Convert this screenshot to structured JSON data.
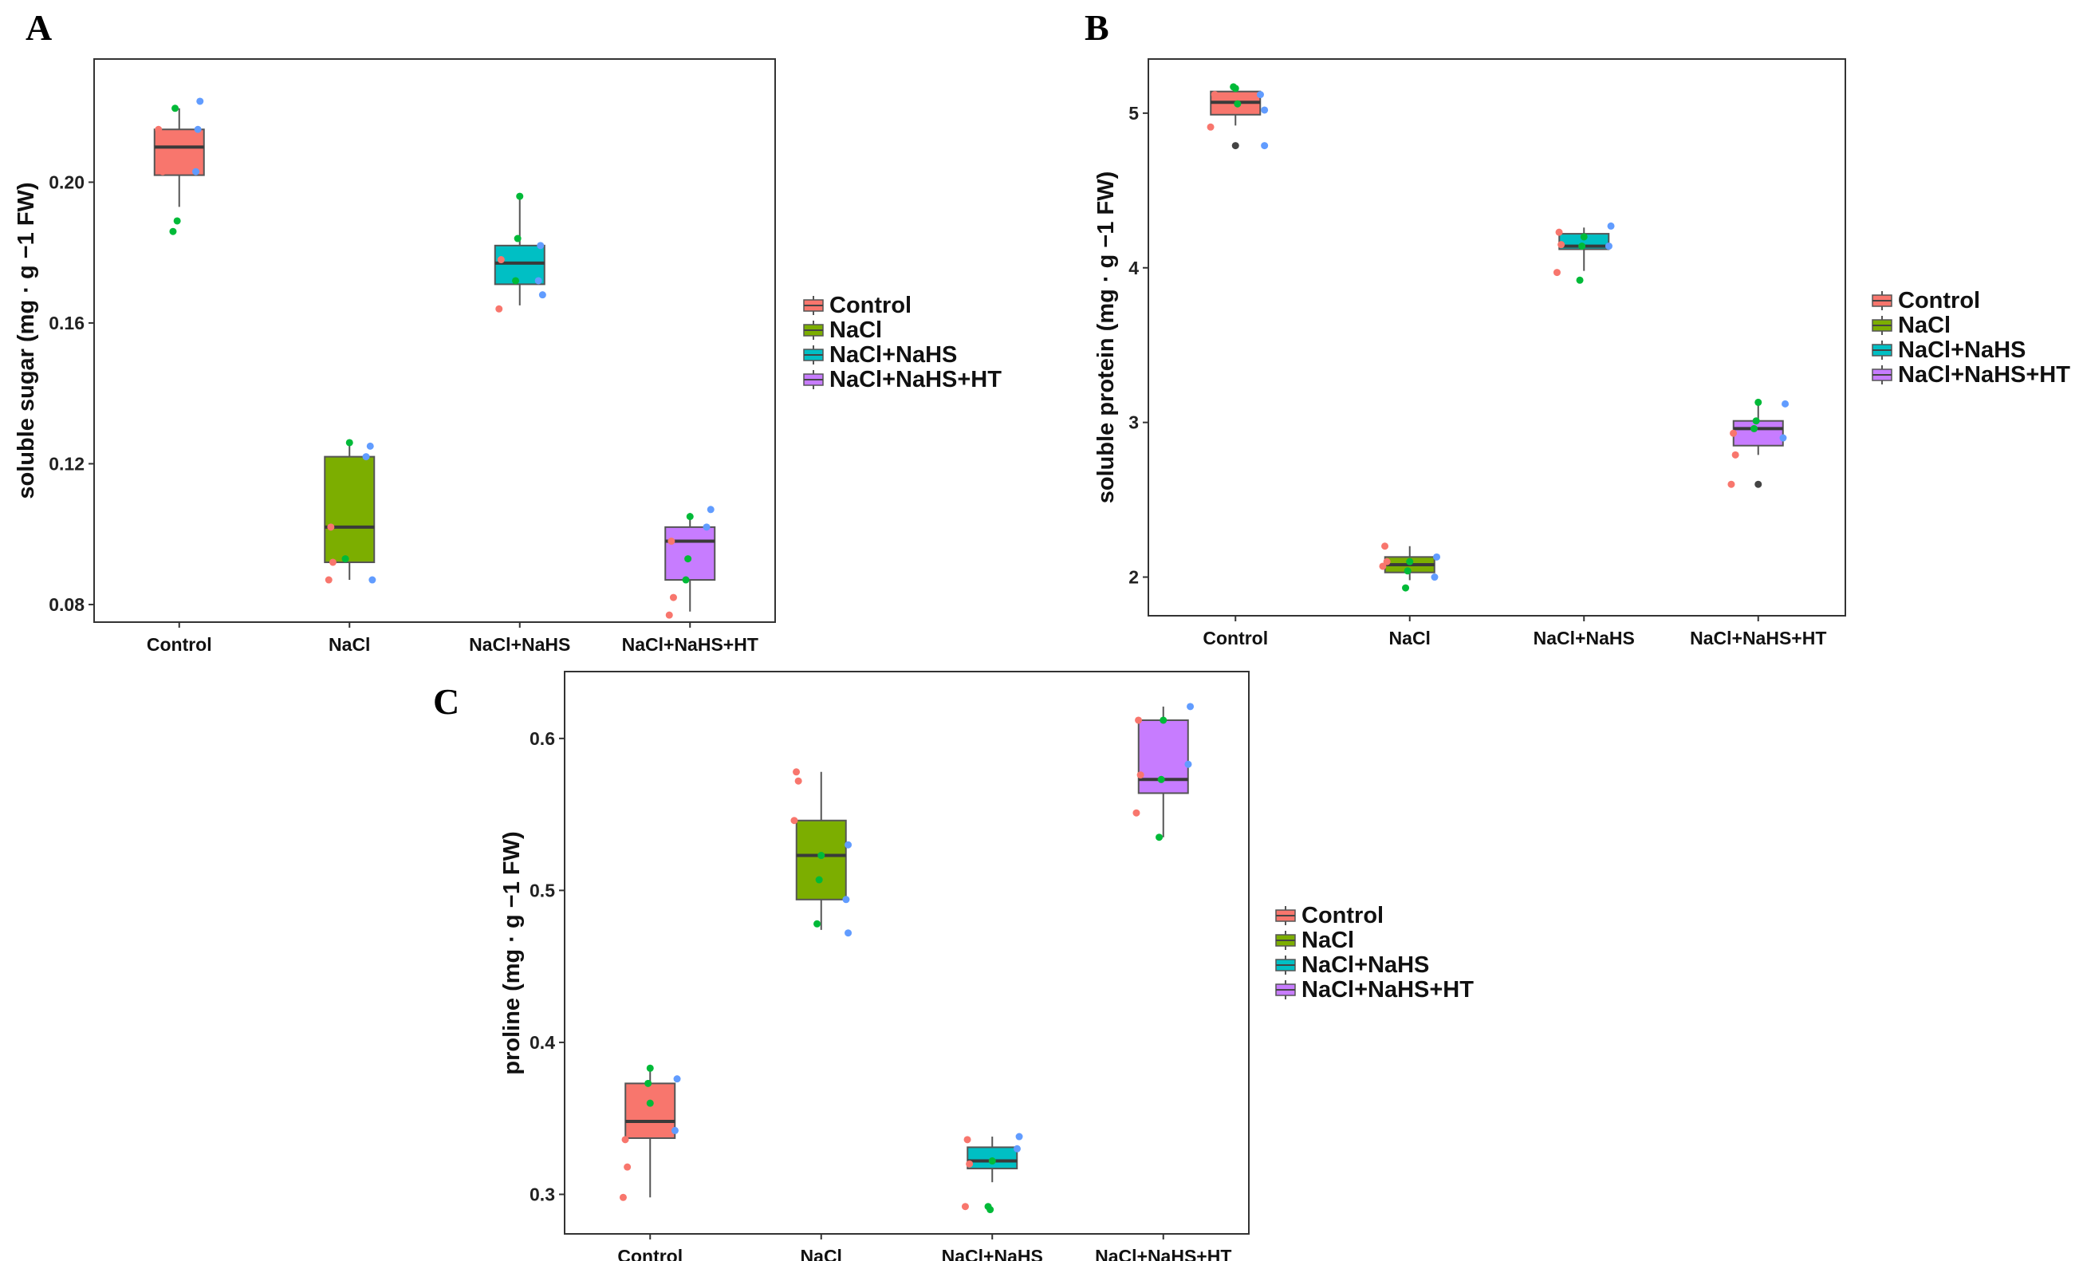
{
  "legend_items": [
    {
      "label": "Control",
      "color": "#f8766d"
    },
    {
      "label": "NaCl",
      "color": "#7cae00"
    },
    {
      "label": "NaCl+NaHS",
      "color": "#00bfc4"
    },
    {
      "label": "NaCl+NaHS+HT",
      "color": "#c77cff"
    }
  ],
  "point_colors": {
    "rep1": "#f8766d",
    "rep2": "#00ba38",
    "rep3": "#619cff",
    "outlier": "#444444"
  },
  "chart_data": [
    {
      "panel": "A",
      "type": "box",
      "ylabel": "soluble sugar (mg · g −1 FW)",
      "categories": [
        "Control",
        "NaCl",
        "NaCl+NaHS",
        "NaCl+NaHS+HT"
      ],
      "ylim": [
        0.075,
        0.235
      ],
      "yticks": [
        0.08,
        0.12,
        0.16,
        0.2
      ],
      "ytick_labels": [
        "0.08",
        "0.12",
        "0.16",
        "0.20"
      ],
      "boxes": [
        {
          "min": 0.193,
          "q1": 0.202,
          "median": 0.21,
          "q3": 0.215,
          "max": 0.221
        },
        {
          "min": 0.087,
          "q1": 0.092,
          "median": 0.102,
          "q3": 0.122,
          "max": 0.126
        },
        {
          "min": 0.165,
          "q1": 0.171,
          "median": 0.177,
          "q3": 0.182,
          "max": 0.196
        },
        {
          "min": 0.078,
          "q1": 0.087,
          "median": 0.098,
          "q3": 0.102,
          "max": 0.106
        }
      ],
      "points": [
        [
          {
            "v": 0.215,
            "g": "rep1",
            "dx": -10
          },
          {
            "v": 0.203,
            "g": "rep1",
            "dx": -8
          },
          {
            "v": 0.221,
            "g": "rep2",
            "dx": -2
          },
          {
            "v": 0.189,
            "g": "rep2",
            "dx": -1
          },
          {
            "v": 0.186,
            "g": "rep2",
            "dx": -3
          },
          {
            "v": 0.223,
            "g": "rep3",
            "dx": 10
          },
          {
            "v": 0.215,
            "g": "rep3",
            "dx": 9
          },
          {
            "v": 0.203,
            "g": "rep3",
            "dx": 8
          }
        ],
        [
          {
            "v": 0.102,
            "g": "rep1",
            "dx": -9
          },
          {
            "v": 0.092,
            "g": "rep1",
            "dx": -8
          },
          {
            "v": 0.087,
            "g": "rep1",
            "dx": -10
          },
          {
            "v": 0.126,
            "g": "rep2",
            "dx": 0
          },
          {
            "v": 0.093,
            "g": "rep2",
            "dx": -2
          },
          {
            "v": 0.125,
            "g": "rep3",
            "dx": 10
          },
          {
            "v": 0.122,
            "g": "rep3",
            "dx": 8
          },
          {
            "v": 0.087,
            "g": "rep3",
            "dx": 11
          }
        ],
        [
          {
            "v": 0.178,
            "g": "rep1",
            "dx": -9
          },
          {
            "v": 0.164,
            "g": "rep1",
            "dx": -10
          },
          {
            "v": 0.196,
            "g": "rep2",
            "dx": 0
          },
          {
            "v": 0.184,
            "g": "rep2",
            "dx": -1
          },
          {
            "v": 0.172,
            "g": "rep2",
            "dx": -2
          },
          {
            "v": 0.182,
            "g": "rep3",
            "dx": 10
          },
          {
            "v": 0.172,
            "g": "rep3",
            "dx": 9
          },
          {
            "v": 0.168,
            "g": "rep3",
            "dx": 11
          }
        ],
        [
          {
            "v": 0.098,
            "g": "rep1",
            "dx": -9
          },
          {
            "v": 0.082,
            "g": "rep1",
            "dx": -8
          },
          {
            "v": 0.077,
            "g": "rep1",
            "dx": -10
          },
          {
            "v": 0.105,
            "g": "rep2",
            "dx": 0
          },
          {
            "v": 0.093,
            "g": "rep2",
            "dx": -1
          },
          {
            "v": 0.087,
            "g": "rep2",
            "dx": -2
          },
          {
            "v": 0.107,
            "g": "rep3",
            "dx": 10
          },
          {
            "v": 0.102,
            "g": "rep3",
            "dx": 8
          }
        ]
      ]
    },
    {
      "panel": "B",
      "type": "box",
      "ylabel": "soluble protein (mg · g −1 FW)",
      "categories": [
        "Control",
        "NaCl",
        "NaCl+NaHS",
        "NaCl+NaHS+HT"
      ],
      "ylim": [
        1.75,
        5.35
      ],
      "yticks": [
        2,
        3,
        4,
        5
      ],
      "ytick_labels": [
        "2",
        "3",
        "4",
        "5"
      ],
      "boxes": [
        {
          "min": 4.92,
          "q1": 4.99,
          "median": 5.07,
          "q3": 5.14,
          "max": 5.17
        },
        {
          "min": 1.98,
          "q1": 2.03,
          "median": 2.08,
          "q3": 2.13,
          "max": 2.2
        },
        {
          "min": 3.98,
          "q1": 4.12,
          "median": 4.14,
          "q3": 4.22,
          "max": 4.26
        },
        {
          "min": 2.79,
          "q1": 2.85,
          "median": 2.96,
          "q3": 3.01,
          "max": 3.12
        }
      ],
      "points": [
        [
          {
            "v": 5.12,
            "g": "rep1",
            "dx": -10
          },
          {
            "v": 4.91,
            "g": "rep1",
            "dx": -12
          },
          {
            "v": 5.16,
            "g": "rep2",
            "dx": 0
          },
          {
            "v": 5.06,
            "g": "rep2",
            "dx": 1
          },
          {
            "v": 5.17,
            "g": "rep2",
            "dx": -1
          },
          {
            "v": 5.12,
            "g": "rep3",
            "dx": 12
          },
          {
            "v": 5.02,
            "g": "rep3",
            "dx": 14
          },
          {
            "v": 4.79,
            "g": "rep3",
            "dx": 14
          },
          {
            "v": 4.79,
            "g": "outlier",
            "dx": 0
          }
        ],
        [
          {
            "v": 2.2,
            "g": "rep1",
            "dx": -12
          },
          {
            "v": 2.1,
            "g": "rep1",
            "dx": -11
          },
          {
            "v": 2.07,
            "g": "rep1",
            "dx": -13
          },
          {
            "v": 2.1,
            "g": "rep2",
            "dx": 0
          },
          {
            "v": 2.04,
            "g": "rep2",
            "dx": -1
          },
          {
            "v": 1.93,
            "g": "rep2",
            "dx": -2
          },
          {
            "v": 2.13,
            "g": "rep3",
            "dx": 13
          },
          {
            "v": 2.0,
            "g": "rep3",
            "dx": 12
          }
        ],
        [
          {
            "v": 4.23,
            "g": "rep1",
            "dx": -12
          },
          {
            "v": 4.15,
            "g": "rep1",
            "dx": -11
          },
          {
            "v": 3.97,
            "g": "rep1",
            "dx": -13
          },
          {
            "v": 4.2,
            "g": "rep2",
            "dx": 0
          },
          {
            "v": 4.14,
            "g": "rep2",
            "dx": -1
          },
          {
            "v": 3.92,
            "g": "rep2",
            "dx": -2
          },
          {
            "v": 4.27,
            "g": "rep3",
            "dx": 13
          },
          {
            "v": 4.14,
            "g": "rep3",
            "dx": 12
          }
        ],
        [
          {
            "v": 2.93,
            "g": "rep1",
            "dx": -12
          },
          {
            "v": 2.79,
            "g": "rep1",
            "dx": -11
          },
          {
            "v": 2.6,
            "g": "rep1",
            "dx": -13
          },
          {
            "v": 3.13,
            "g": "rep2",
            "dx": 0
          },
          {
            "v": 3.01,
            "g": "rep2",
            "dx": -1
          },
          {
            "v": 2.96,
            "g": "rep2",
            "dx": -2
          },
          {
            "v": 3.12,
            "g": "rep3",
            "dx": 13
          },
          {
            "v": 2.9,
            "g": "rep3",
            "dx": 12
          },
          {
            "v": 2.6,
            "g": "outlier",
            "dx": 0
          }
        ]
      ]
    },
    {
      "panel": "C",
      "type": "box",
      "ylabel": "proline (mg · g −1 FW)",
      "categories": [
        "Control",
        "NaCl",
        "NaCl+NaHS",
        "NaCl+NaHS+HT"
      ],
      "ylim": [
        0.274,
        0.644
      ],
      "yticks": [
        0.3,
        0.4,
        0.5,
        0.6
      ],
      "ytick_labels": [
        "0.3",
        "0.4",
        "0.5",
        "0.6"
      ],
      "boxes": [
        {
          "min": 0.298,
          "q1": 0.337,
          "median": 0.348,
          "q3": 0.373,
          "max": 0.383
        },
        {
          "min": 0.474,
          "q1": 0.494,
          "median": 0.523,
          "q3": 0.546,
          "max": 0.578
        },
        {
          "min": 0.308,
          "q1": 0.317,
          "median": 0.322,
          "q3": 0.331,
          "max": 0.338
        },
        {
          "min": 0.535,
          "q1": 0.564,
          "median": 0.573,
          "q3": 0.612,
          "max": 0.621
        }
      ],
      "points": [
        [
          {
            "v": 0.336,
            "g": "rep1",
            "dx": -12
          },
          {
            "v": 0.318,
            "g": "rep1",
            "dx": -11
          },
          {
            "v": 0.298,
            "g": "rep1",
            "dx": -13
          },
          {
            "v": 0.383,
            "g": "rep2",
            "dx": 0
          },
          {
            "v": 0.373,
            "g": "rep2",
            "dx": -1
          },
          {
            "v": 0.36,
            "g": "rep2",
            "dx": 0
          },
          {
            "v": 0.376,
            "g": "rep3",
            "dx": 13
          },
          {
            "v": 0.342,
            "g": "rep3",
            "dx": 12
          }
        ],
        [
          {
            "v": 0.578,
            "g": "rep1",
            "dx": -12
          },
          {
            "v": 0.572,
            "g": "rep1",
            "dx": -11
          },
          {
            "v": 0.546,
            "g": "rep1",
            "dx": -13
          },
          {
            "v": 0.523,
            "g": "rep2",
            "dx": 0
          },
          {
            "v": 0.507,
            "g": "rep2",
            "dx": -1
          },
          {
            "v": 0.478,
            "g": "rep2",
            "dx": -2
          },
          {
            "v": 0.53,
            "g": "rep3",
            "dx": 13
          },
          {
            "v": 0.494,
            "g": "rep3",
            "dx": 12
          },
          {
            "v": 0.472,
            "g": "rep3",
            "dx": 13
          }
        ],
        [
          {
            "v": 0.336,
            "g": "rep1",
            "dx": -12
          },
          {
            "v": 0.32,
            "g": "rep1",
            "dx": -11
          },
          {
            "v": 0.292,
            "g": "rep1",
            "dx": -13
          },
          {
            "v": 0.322,
            "g": "rep2",
            "dx": 0
          },
          {
            "v": 0.29,
            "g": "rep2",
            "dx": -1
          },
          {
            "v": 0.292,
            "g": "rep2",
            "dx": -2
          },
          {
            "v": 0.338,
            "g": "rep3",
            "dx": 13
          },
          {
            "v": 0.33,
            "g": "rep3",
            "dx": 12
          }
        ],
        [
          {
            "v": 0.612,
            "g": "rep1",
            "dx": -12
          },
          {
            "v": 0.576,
            "g": "rep1",
            "dx": -11
          },
          {
            "v": 0.551,
            "g": "rep1",
            "dx": -13
          },
          {
            "v": 0.612,
            "g": "rep2",
            "dx": 0
          },
          {
            "v": 0.573,
            "g": "rep2",
            "dx": -1
          },
          {
            "v": 0.535,
            "g": "rep2",
            "dx": -2
          },
          {
            "v": 0.621,
            "g": "rep3",
            "dx": 13
          },
          {
            "v": 0.583,
            "g": "rep3",
            "dx": 12
          }
        ]
      ]
    }
  ]
}
